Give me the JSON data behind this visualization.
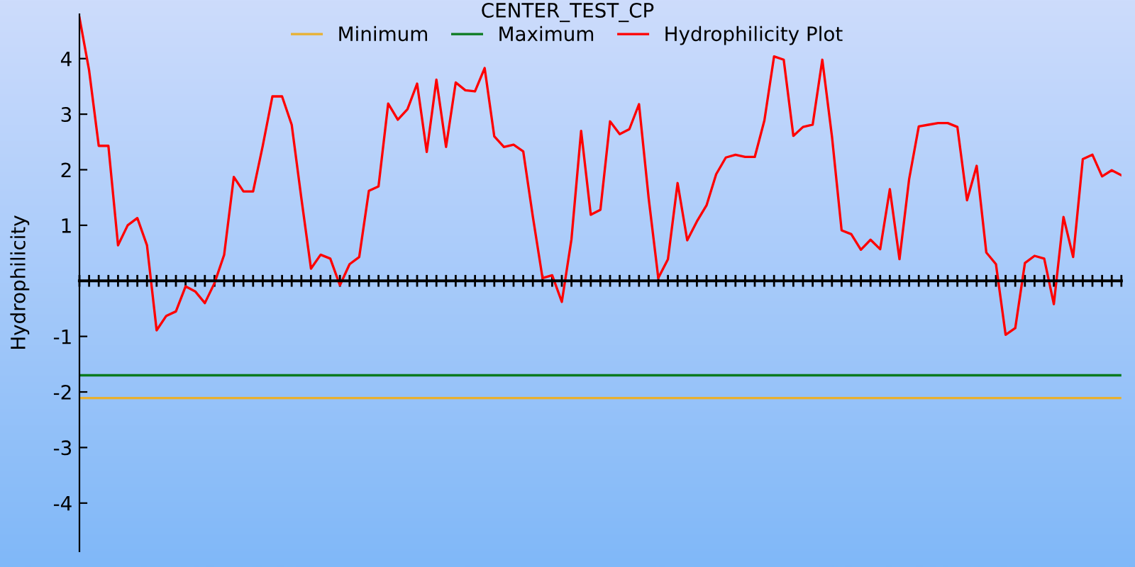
{
  "chart_data": {
    "type": "line",
    "title": "CENTER_TEST_CP",
    "ylabel": "Hydrophilicity",
    "categories": [
      null,
      null,
      null,
      null,
      null,
      null,
      null,
      null,
      null,
      null,
      null,
      null,
      null,
      null,
      null,
      null,
      null,
      null,
      null,
      null,
      null,
      null,
      null,
      null,
      null,
      null,
      null,
      null,
      null,
      null,
      null,
      null,
      null,
      null,
      null,
      null,
      null,
      null,
      null,
      null,
      null,
      null,
      null,
      null,
      null,
      null,
      null,
      null,
      null,
      null,
      null,
      null,
      null,
      null,
      null,
      null,
      null,
      null,
      null,
      null,
      null,
      null,
      null,
      null,
      null,
      null,
      null,
      null,
      null,
      null,
      null,
      null,
      null,
      null,
      null,
      null,
      null,
      null,
      null,
      null,
      null,
      null,
      null,
      null,
      null,
      null,
      null,
      null,
      null,
      null,
      null,
      null,
      null,
      null,
      null,
      null,
      null,
      null,
      null,
      null,
      null,
      null,
      null,
      null,
      null,
      null,
      null,
      null,
      null
    ],
    "series": [
      {
        "name": "Minimum",
        "color": "#e8b030",
        "values": [
          -2.11,
          -2.11,
          -2.11,
          -2.11,
          -2.11,
          -2.11,
          -2.11,
          -2.11,
          -2.11,
          -2.11,
          -2.11,
          -2.11,
          -2.11,
          -2.11,
          -2.11,
          -2.11,
          -2.11,
          -2.11,
          -2.11,
          -2.11,
          -2.11,
          -2.11,
          -2.11,
          -2.11,
          -2.11,
          -2.11,
          -2.11,
          -2.11,
          -2.11,
          -2.11,
          -2.11,
          -2.11,
          -2.11,
          -2.11,
          -2.11,
          -2.11,
          -2.11,
          -2.11,
          -2.11,
          -2.11,
          -2.11,
          -2.11,
          -2.11,
          -2.11,
          -2.11,
          -2.11,
          -2.11,
          -2.11,
          -2.11,
          -2.11,
          -2.11,
          -2.11,
          -2.11,
          -2.11,
          -2.11,
          -2.11,
          -2.11,
          -2.11,
          -2.11,
          -2.11,
          -2.11,
          -2.11,
          -2.11,
          -2.11,
          -2.11,
          -2.11,
          -2.11,
          -2.11,
          -2.11,
          -2.11,
          -2.11,
          -2.11,
          -2.11,
          -2.11,
          -2.11,
          -2.11,
          -2.11,
          -2.11,
          -2.11,
          -2.11,
          -2.11,
          -2.11,
          -2.11,
          -2.11,
          -2.11,
          -2.11,
          -2.11,
          -2.11,
          -2.11,
          -2.11,
          -2.11,
          -2.11,
          -2.11,
          -2.11,
          -2.11,
          -2.11,
          -2.11,
          -2.11,
          -2.11,
          -2.11,
          -2.11,
          -2.11,
          -2.11,
          -2.11,
          -2.11,
          -2.11,
          -2.11,
          -2.11,
          -2.11
        ]
      },
      {
        "name": "Maximum",
        "color": "#0a7a1e",
        "values": [
          -1.7,
          -1.7,
          -1.7,
          -1.7,
          -1.7,
          -1.7,
          -1.7,
          -1.7,
          -1.7,
          -1.7,
          -1.7,
          -1.7,
          -1.7,
          -1.7,
          -1.7,
          -1.7,
          -1.7,
          -1.7,
          -1.7,
          -1.7,
          -1.7,
          -1.7,
          -1.7,
          -1.7,
          -1.7,
          -1.7,
          -1.7,
          -1.7,
          -1.7,
          -1.7,
          -1.7,
          -1.7,
          -1.7,
          -1.7,
          -1.7,
          -1.7,
          -1.7,
          -1.7,
          -1.7,
          -1.7,
          -1.7,
          -1.7,
          -1.7,
          -1.7,
          -1.7,
          -1.7,
          -1.7,
          -1.7,
          -1.7,
          -1.7,
          -1.7,
          -1.7,
          -1.7,
          -1.7,
          -1.7,
          -1.7,
          -1.7,
          -1.7,
          -1.7,
          -1.7,
          -1.7,
          -1.7,
          -1.7,
          -1.7,
          -1.7,
          -1.7,
          -1.7,
          -1.7,
          -1.7,
          -1.7,
          -1.7,
          -1.7,
          -1.7,
          -1.7,
          -1.7,
          -1.7,
          -1.7,
          -1.7,
          -1.7,
          -1.7,
          -1.7,
          -1.7,
          -1.7,
          -1.7,
          -1.7,
          -1.7,
          -1.7,
          -1.7,
          -1.7,
          -1.7,
          -1.7,
          -1.7,
          -1.7,
          -1.7,
          -1.7,
          -1.7,
          -1.7,
          -1.7,
          -1.7,
          -1.7,
          -1.7,
          -1.7,
          -1.7,
          -1.7,
          -1.7,
          -1.7,
          -1.7,
          -1.7,
          -1.7
        ]
      },
      {
        "name": "Hydrophilicity Plot",
        "color": "#ff0000",
        "values": [
          4.74,
          3.79,
          2.43,
          2.43,
          0.64,
          1.0,
          1.13,
          0.64,
          -0.89,
          -0.63,
          -0.55,
          -0.1,
          -0.19,
          -0.4,
          -0.04,
          0.47,
          1.87,
          1.61,
          1.61,
          2.43,
          3.32,
          3.32,
          2.81,
          1.49,
          0.22,
          0.47,
          0.4,
          -0.08,
          0.3,
          0.43,
          1.62,
          1.7,
          3.19,
          2.9,
          3.09,
          3.55,
          2.32,
          3.62,
          2.41,
          3.57,
          3.43,
          3.41,
          3.83,
          2.6,
          2.41,
          2.45,
          2.33,
          1.15,
          0.05,
          0.1,
          -0.38,
          0.75,
          2.7,
          1.19,
          1.28,
          2.87,
          2.64,
          2.73,
          3.18,
          1.49,
          0.05,
          0.39,
          1.76,
          0.73,
          1.07,
          1.36,
          1.92,
          2.22,
          2.27,
          2.23,
          2.23,
          2.89,
          4.04,
          3.98,
          2.61,
          2.77,
          2.81,
          3.98,
          2.6,
          0.91,
          0.84,
          0.56,
          0.74,
          0.57,
          1.65,
          0.39,
          1.83,
          2.78,
          2.81,
          2.84,
          2.84,
          2.77,
          1.45,
          2.07,
          0.51,
          0.3,
          -0.97,
          -0.85,
          0.32,
          0.45,
          0.4,
          -0.42,
          1.15,
          0.43,
          2.19,
          2.27,
          1.88,
          1.99,
          1.9
        ]
      }
    ],
    "ylim": [
      -4.87,
      4.8
    ],
    "yticks": [
      -4,
      -3,
      -2,
      -1,
      1,
      2,
      3,
      4
    ],
    "tick_labels": "y",
    "legend": "top",
    "grid": false,
    "marker": "none",
    "line_style": "solid"
  }
}
